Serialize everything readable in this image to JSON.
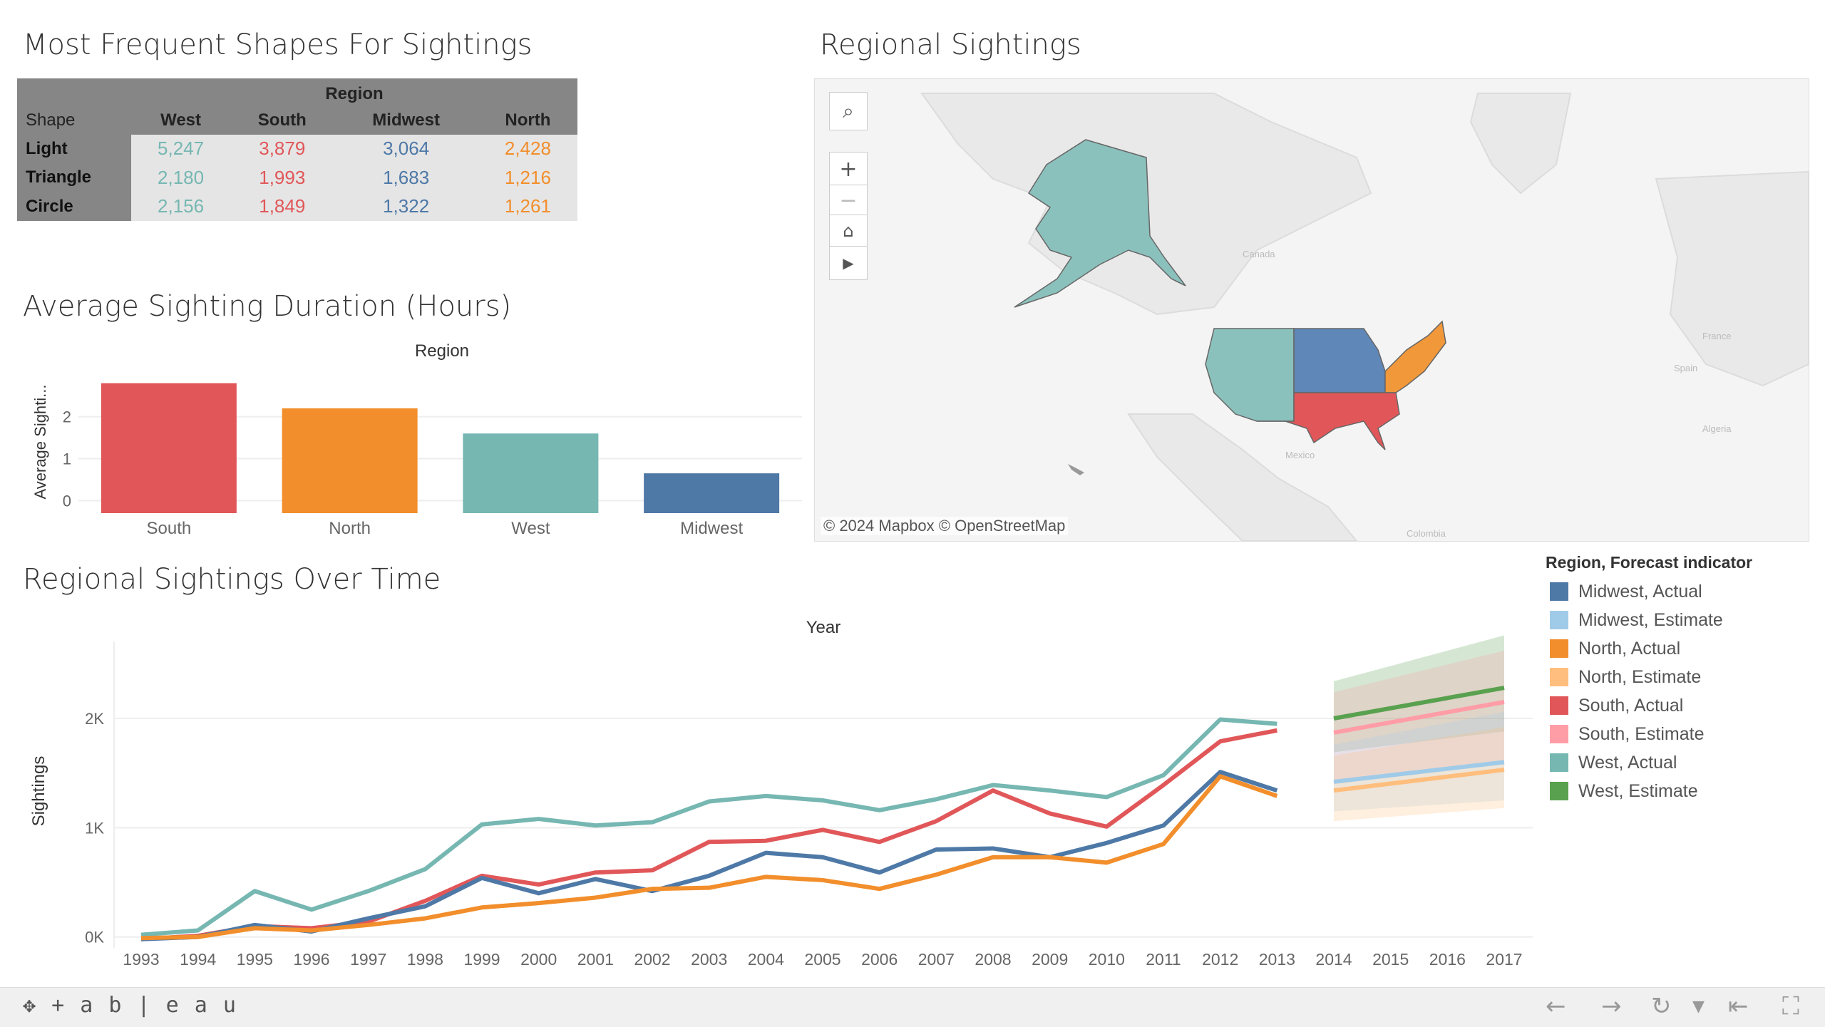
{
  "titles": {
    "shapes": "Most Frequent Shapes For Sightings",
    "duration": "Average Sighting Duration (Hours)",
    "regional_map": "Regional Sightings",
    "over_time": "Regional Sightings Over Time"
  },
  "colors": {
    "west": "#76b7b2",
    "south": "#e15759",
    "midwest": "#4e79a7",
    "north": "#f28e2b",
    "west_estimate": "#59a14f",
    "south_estimate": "#ff9da7",
    "midwest_estimate": "#a0cbe8",
    "north_estimate": "#ffbe7d"
  },
  "shapes_table": {
    "region_header": "Region",
    "row_header": "Shape",
    "columns": [
      "West",
      "South",
      "Midwest",
      "North"
    ],
    "rows": [
      {
        "shape": "Light",
        "values": [
          "5,247",
          "3,879",
          "3,064",
          "2,428"
        ]
      },
      {
        "shape": "Triangle",
        "values": [
          "2,180",
          "1,993",
          "1,683",
          "1,216"
        ]
      },
      {
        "shape": "Circle",
        "values": [
          "2,156",
          "1,849",
          "1,322",
          "1,261"
        ]
      }
    ]
  },
  "map": {
    "attribution": "© 2024 Mapbox  © OpenStreetMap",
    "labels": {
      "canada": "Canada",
      "mexico": "Mexico",
      "colombia": "Colombia",
      "france": "France",
      "spain": "Spain",
      "algeria": "Algeria"
    },
    "controls": {
      "search_icon": "search-icon",
      "zoom_in": "+",
      "zoom_out": "−",
      "home_icon": "home-icon",
      "pan_icon": "play-icon"
    }
  },
  "chart_data": [
    {
      "type": "bar",
      "title": "Average Sighting Duration (Hours)",
      "xlabel": "Region",
      "ylabel": "Average Sighti...",
      "categories": [
        "South",
        "North",
        "West",
        "Midwest"
      ],
      "values": [
        2.8,
        2.2,
        1.6,
        0.65
      ],
      "yticks": [
        "0",
        "1",
        "2"
      ],
      "ylim": [
        -0.3,
        3.1
      ],
      "colors": [
        "#e15759",
        "#f28e2b",
        "#76b7b2",
        "#4e79a7"
      ]
    },
    {
      "type": "line",
      "title": "Regional Sightings Over Time",
      "xlabel": "Year",
      "ylabel": "Sightings",
      "x": [
        1993,
        1994,
        1995,
        1996,
        1997,
        1998,
        1999,
        2000,
        2001,
        2002,
        2003,
        2004,
        2005,
        2006,
        2007,
        2008,
        2009,
        2010,
        2011,
        2012,
        2013
      ],
      "x_ticks": [
        1993,
        1994,
        1995,
        1996,
        1997,
        1998,
        1999,
        2000,
        2001,
        2002,
        2003,
        2004,
        2005,
        2006,
        2007,
        2008,
        2009,
        2010,
        2011,
        2012,
        2013,
        2014,
        2015,
        2016,
        2017
      ],
      "yticks": [
        {
          "value": 0,
          "label": "0K"
        },
        {
          "value": 1000,
          "label": "1K"
        },
        {
          "value": 2000,
          "label": "2K"
        }
      ],
      "ylim": [
        -100,
        2900
      ],
      "series": [
        {
          "name": "West, Actual",
          "color": "#76b7b2",
          "values": [
            20,
            60,
            420,
            250,
            420,
            620,
            1030,
            1080,
            1020,
            1050,
            1240,
            1290,
            1250,
            1160,
            1260,
            1390,
            1340,
            1280,
            1480,
            1990,
            1950
          ]
        },
        {
          "name": "South, Actual",
          "color": "#e15759",
          "values": [
            -20,
            10,
            100,
            80,
            140,
            330,
            560,
            480,
            590,
            610,
            870,
            880,
            980,
            870,
            1060,
            1340,
            1130,
            1010,
            1390,
            1790,
            1890
          ]
        },
        {
          "name": "Midwest, Actual",
          "color": "#4e79a7",
          "values": [
            -20,
            0,
            110,
            50,
            170,
            280,
            540,
            400,
            530,
            420,
            560,
            770,
            730,
            590,
            800,
            810,
            730,
            860,
            1020,
            1510,
            1340
          ]
        },
        {
          "name": "North, Actual",
          "color": "#f28e2b",
          "values": [
            -10,
            0,
            80,
            60,
            110,
            170,
            270,
            310,
            360,
            440,
            450,
            550,
            520,
            440,
            570,
            730,
            730,
            680,
            850,
            1470,
            1290
          ]
        }
      ],
      "forecast": {
        "x": [
          2014,
          2017
        ],
        "series": [
          {
            "name": "West, Estimate",
            "color": "#59a14f",
            "values": [
              2000,
              2280
            ],
            "band": [
              [
                1690,
                2340
              ],
              [
                1880,
                2760
              ]
            ]
          },
          {
            "name": "South, Estimate",
            "color": "#ff9da7",
            "values": [
              1870,
              2150
            ],
            "band": [
              [
                1400,
                2240
              ],
              [
                1600,
                2620
              ]
            ]
          },
          {
            "name": "Midwest, Estimate",
            "color": "#a0cbe8",
            "values": [
              1420,
              1600
            ],
            "band": [
              [
                1150,
                1760
              ],
              [
                1250,
                2060
              ]
            ]
          },
          {
            "name": "North, Estimate",
            "color": "#ffbe7d",
            "values": [
              1340,
              1530
            ],
            "band": [
              [
                1060,
                1660
              ],
              [
                1180,
                1920
              ]
            ]
          }
        ]
      }
    }
  ],
  "legend": {
    "title": "Region, Forecast indicator",
    "items": [
      {
        "label": "Midwest, Actual",
        "color": "#4e79a7"
      },
      {
        "label": "Midwest, Estimate",
        "color": "#a0cbe8"
      },
      {
        "label": "North, Actual",
        "color": "#f28e2b"
      },
      {
        "label": "North, Estimate",
        "color": "#ffbe7d"
      },
      {
        "label": "South, Actual",
        "color": "#e15759"
      },
      {
        "label": "South, Estimate",
        "color": "#ff9da7"
      },
      {
        "label": "West, Actual",
        "color": "#76b7b2"
      },
      {
        "label": "West, Estimate",
        "color": "#59a14f"
      }
    ]
  },
  "footer": {
    "logo_text": "+ a b | e a u",
    "icons": [
      "undo-icon",
      "redo-icon",
      "replay-icon",
      "dropdown-icon",
      "revert-icon",
      "fullscreen-icon"
    ]
  }
}
